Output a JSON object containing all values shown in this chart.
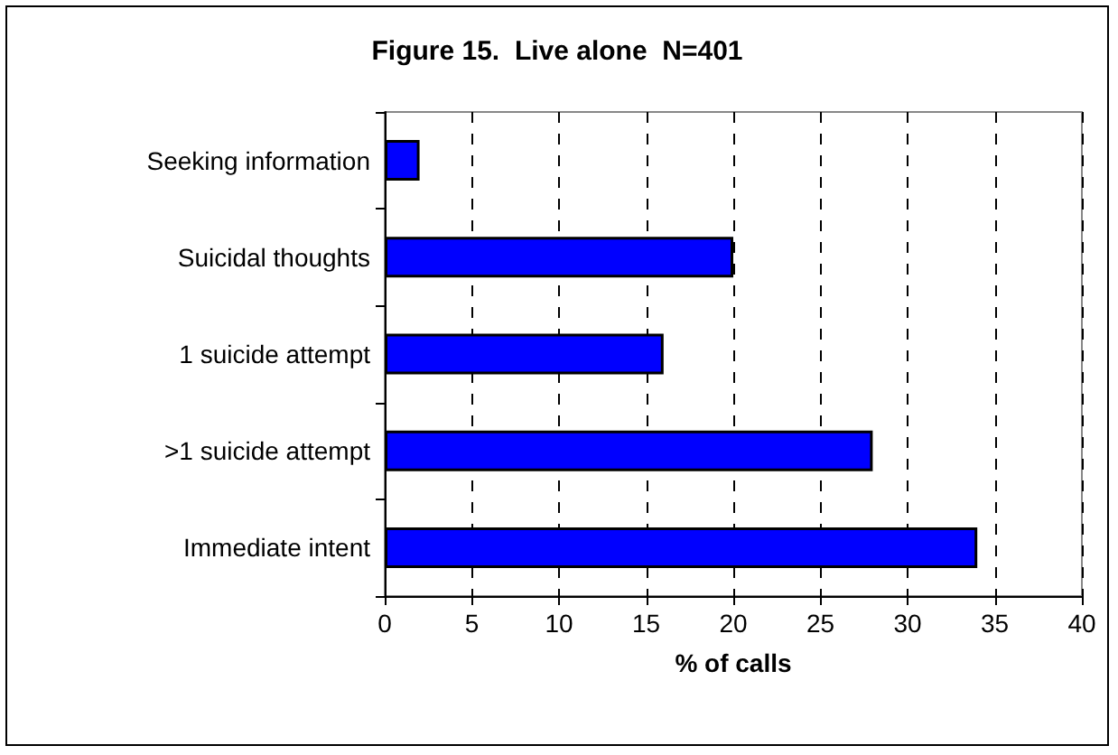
{
  "chart_data": {
    "type": "bar",
    "orientation": "horizontal",
    "title": "Figure 15.  Live alone  N=401",
    "xlabel": "% of calls",
    "categories": [
      "Seeking information",
      "Suicidal thoughts",
      "1 suicide attempt",
      ">1 suicide attempt",
      "Immediate intent"
    ],
    "values": [
      2,
      20,
      16,
      28,
      34
    ],
    "color": "#0000ff",
    "xlim": [
      0,
      40
    ],
    "xticks": [
      0,
      5,
      10,
      15,
      20,
      25,
      30,
      35,
      40
    ],
    "grid": "x"
  }
}
